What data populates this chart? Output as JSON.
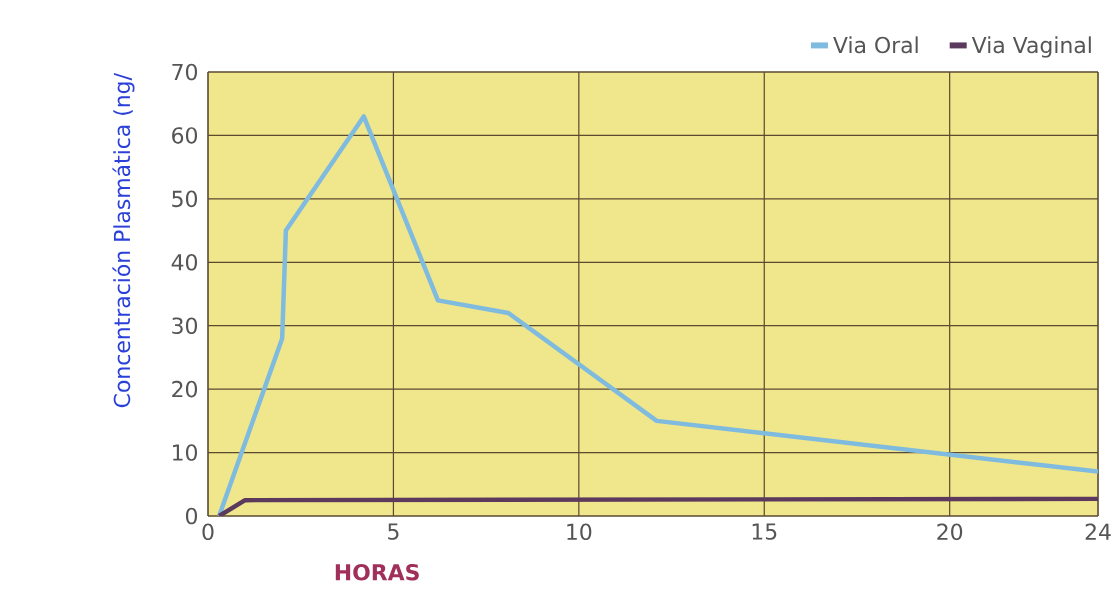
{
  "chart_data": {
    "type": "line",
    "xlabel": "HORAS",
    "ylabel": "Concentración Plasmática (ng/",
    "xlim": [
      0,
      24
    ],
    "ylim": [
      0,
      70
    ],
    "xticks": [
      0,
      5,
      10,
      15,
      20,
      24
    ],
    "yticks": [
      0,
      10,
      20,
      30,
      40,
      50,
      60,
      70
    ],
    "grid": true,
    "legend": "top right",
    "marker": "none",
    "line_style": "solid",
    "series": [
      {
        "name": "Via Oral",
        "color": "#7fbadf",
        "x": [
          0.3,
          2,
          2.1,
          4.2,
          6.2,
          8.1,
          12.1,
          24
        ],
        "values": [
          0,
          28,
          45,
          63,
          34,
          32,
          15,
          7
        ]
      },
      {
        "name": "Via Vaginal",
        "color": "#5c3a5e",
        "x": [
          0.3,
          1,
          24
        ],
        "values": [
          0,
          2.5,
          2.7
        ]
      }
    ]
  }
}
